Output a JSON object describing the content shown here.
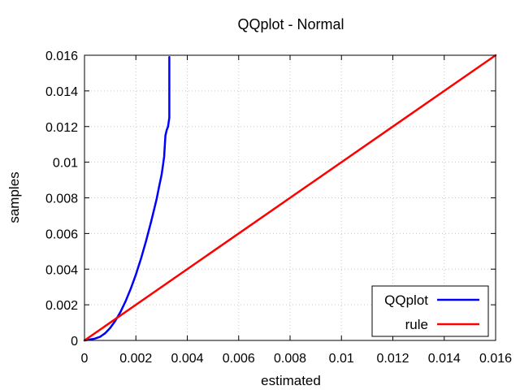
{
  "chart_data": {
    "type": "line",
    "title": "QQplot - Normal",
    "xlabel": "estimated",
    "ylabel": "samples",
    "xlim": [
      0,
      0.016
    ],
    "ylim": [
      0,
      0.016
    ],
    "grid": true,
    "legend_position": "bottom-right",
    "x_ticks": [
      "0",
      "0.002",
      "0.004",
      "0.006",
      "0.008",
      "0.01",
      "0.012",
      "0.014",
      "0.016"
    ],
    "y_ticks": [
      "0",
      "0.002",
      "0.004",
      "0.006",
      "0.008",
      "0.01",
      "0.012",
      "0.014",
      "0.016"
    ],
    "series": [
      {
        "name": "QQplot",
        "color": "#0000ff",
        "x": [
          0,
          0.0002,
          0.0004,
          0.0006,
          0.0008,
          0.001,
          0.0012,
          0.0014,
          0.0016,
          0.0018,
          0.002,
          0.0022,
          0.0024,
          0.0026,
          0.0028,
          0.0029,
          0.003,
          0.00305,
          0.0031,
          0.00315,
          0.0032,
          0.00325,
          0.0033,
          0.0033
        ],
        "y": [
          0,
          5e-05,
          0.0001,
          0.0002,
          0.0004,
          0.0007,
          0.0011,
          0.0016,
          0.0022,
          0.0029,
          0.0037,
          0.0046,
          0.0056,
          0.0067,
          0.0079,
          0.0086,
          0.0093,
          0.0098,
          0.0103,
          0.0115,
          0.0118,
          0.012,
          0.0125,
          0.0159
        ]
      },
      {
        "name": "rule",
        "color": "#ff0000",
        "x": [
          0,
          0.016
        ],
        "y": [
          0,
          0.016
        ]
      }
    ]
  }
}
